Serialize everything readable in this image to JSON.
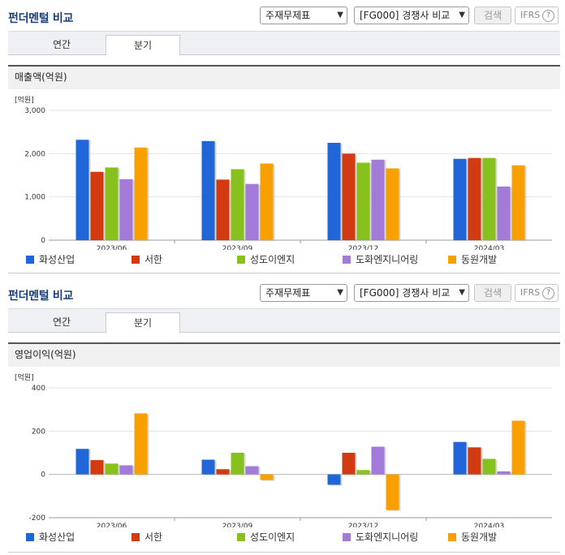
{
  "panels": [
    {
      "title": "펀더멘털 비교",
      "select1": "주재무제표",
      "select2": "[FG000] 경쟁사 비교",
      "search": "검색",
      "ifrs": "IFRS",
      "tabs": [
        "연간",
        "분기"
      ],
      "active_tab": 1,
      "section": "매출액(억원)"
    },
    {
      "title": "펀더멘털 비교",
      "select1": "주재무제표",
      "select2": "[FG000] 경쟁사 비교",
      "search": "검색",
      "ifrs": "IFRS",
      "tabs": [
        "연간",
        "분기"
      ],
      "active_tab": 1,
      "section": "영업이익(억원)"
    }
  ],
  "colors": [
    "#2166d9",
    "#d23a12",
    "#86c11d",
    "#a27ad8",
    "#f7a000"
  ],
  "chart_data": [
    {
      "type": "bar",
      "unit": "[억원]",
      "categories": [
        "2023/06",
        "2023/09",
        "2023/12",
        "2024/03"
      ],
      "ylim": [
        0,
        3000
      ],
      "yticks": [
        "3,000",
        "2,000",
        "1,000",
        "0"
      ],
      "series": [
        {
          "name": "화성산업",
          "values": [
            2320,
            2290,
            2250,
            1880
          ]
        },
        {
          "name": "서한",
          "values": [
            1580,
            1400,
            2000,
            1900
          ]
        },
        {
          "name": "성도이엔지",
          "values": [
            1680,
            1640,
            1790,
            1900
          ]
        },
        {
          "name": "도화엔지니어링",
          "values": [
            1410,
            1300,
            1860,
            1240
          ]
        },
        {
          "name": "동원개발",
          "values": [
            2140,
            1770,
            1660,
            1730
          ]
        }
      ]
    },
    {
      "type": "bar",
      "unit": "[억원]",
      "categories": [
        "2023/06",
        "2023/09",
        "2023/12",
        "2024/03"
      ],
      "ylim": [
        -200,
        400
      ],
      "yticks": [
        "400",
        "200",
        "0",
        "-200"
      ],
      "series": [
        {
          "name": "화성산업",
          "values": [
            118,
            68,
            -48,
            150
          ]
        },
        {
          "name": "서한",
          "values": [
            66,
            24,
            100,
            125
          ]
        },
        {
          "name": "성도이엔지",
          "values": [
            50,
            100,
            20,
            72
          ]
        },
        {
          "name": "도화엔지니어링",
          "values": [
            42,
            38,
            128,
            14
          ]
        },
        {
          "name": "동원개발",
          "values": [
            282,
            -26,
            -165,
            248
          ]
        }
      ]
    }
  ]
}
